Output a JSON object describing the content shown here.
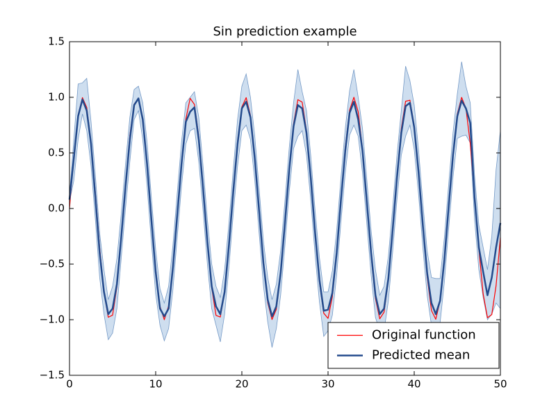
{
  "chart_data": {
    "type": "line",
    "title": "Sin prediction example",
    "x": [
      0,
      0.5,
      1,
      1.5,
      2,
      2.5,
      3,
      3.5,
      4,
      4.5,
      5,
      5.5,
      6,
      6.5,
      7,
      7.5,
      8,
      8.5,
      9,
      9.5,
      10,
      10.5,
      11,
      11.5,
      12,
      12.5,
      13,
      13.5,
      14,
      14.5,
      15,
      15.5,
      16,
      16.5,
      17,
      17.5,
      18,
      18.5,
      19,
      19.5,
      20,
      20.5,
      21,
      21.5,
      22,
      22.5,
      23,
      23.5,
      24,
      24.5,
      25,
      25.5,
      26,
      26.5,
      27,
      27.5,
      28,
      28.5,
      29,
      29.5,
      30,
      30.5,
      31,
      31.5,
      32,
      32.5,
      33,
      33.5,
      34,
      34.5,
      35,
      35.5,
      36,
      36.5,
      37,
      37.5,
      38,
      38.5,
      39,
      39.5,
      40,
      40.5,
      41,
      41.5,
      42,
      42.5,
      43,
      43.5,
      44,
      44.5,
      45,
      45.5,
      46,
      46.5,
      47,
      47.5,
      48,
      48.5,
      49,
      49.5,
      50
    ],
    "band": {
      "color": "#c6d8ec",
      "edge": "#7499c6",
      "upper": [
        0.12,
        0.62,
        1.12,
        1.13,
        1.17,
        0.78,
        0.3,
        -0.22,
        -0.55,
        -0.82,
        -0.7,
        -0.45,
        -0.05,
        0.4,
        0.82,
        1.07,
        1.1,
        0.95,
        0.6,
        0.1,
        -0.37,
        -0.72,
        -0.85,
        -0.7,
        -0.33,
        0.14,
        0.6,
        0.95,
        1.0,
        1.05,
        0.82,
        0.38,
        -0.1,
        -0.5,
        -0.7,
        -0.8,
        -0.55,
        -0.13,
        0.35,
        0.8,
        1.1,
        1.21,
        1.0,
        0.65,
        0.18,
        -0.29,
        -0.62,
        -0.82,
        -0.68,
        -0.38,
        0.07,
        0.55,
        0.95,
        1.25,
        1.05,
        0.88,
        0.47,
        -0.02,
        -0.44,
        -0.75,
        -0.75,
        -0.56,
        -0.2,
        0.28,
        0.72,
        1.06,
        1.25,
        1.0,
        0.72,
        0.26,
        -0.2,
        -0.55,
        -0.78,
        -0.7,
        -0.43,
        0.01,
        0.48,
        0.88,
        1.28,
        1.15,
        0.93,
        0.53,
        0.05,
        -0.38,
        -0.62,
        -0.63,
        -0.63,
        -0.26,
        0.22,
        0.68,
        1.03,
        1.32,
        1.1,
        0.95,
        0.3,
        -0.15,
        -0.35,
        -0.55,
        -0.25,
        0.35,
        0.7
      ],
      "lower": [
        0.06,
        0.25,
        0.62,
        0.85,
        0.7,
        0.38,
        -0.1,
        -0.62,
        -0.95,
        -1.18,
        -1.12,
        -0.9,
        -0.45,
        0.0,
        0.42,
        0.8,
        0.88,
        0.62,
        0.2,
        -0.3,
        -0.77,
        -1.05,
        -1.19,
        -1.08,
        -0.73,
        -0.26,
        0.2,
        0.58,
        0.7,
        0.72,
        0.42,
        -0.02,
        -0.5,
        -0.9,
        -1.05,
        -1.2,
        -0.95,
        -0.53,
        -0.05,
        0.38,
        0.7,
        0.75,
        0.62,
        0.25,
        -0.22,
        -0.69,
        -1.02,
        -1.25,
        -1.08,
        -0.78,
        -0.33,
        0.15,
        0.54,
        0.65,
        0.7,
        0.48,
        0.07,
        -0.42,
        -0.84,
        -1.15,
        -1.1,
        -0.96,
        -0.6,
        -0.12,
        0.32,
        0.66,
        0.75,
        0.65,
        0.32,
        -0.14,
        -0.6,
        -0.98,
        -1.1,
        -1.1,
        -0.83,
        -0.39,
        0.08,
        0.48,
        0.65,
        0.75,
        0.53,
        0.13,
        -0.35,
        -0.78,
        -1.05,
        -1.1,
        -1.03,
        -0.66,
        -0.18,
        0.28,
        0.63,
        0.65,
        0.66,
        0.59,
        -0.1,
        -0.55,
        -0.8,
        -1.0,
        -0.95,
        -0.85,
        -0.9
      ]
    },
    "series": [
      {
        "name": "Original function",
        "color": "#ff0000",
        "width": 1.2,
        "values": [
          0,
          0.479,
          0.841,
          0.997,
          0.909,
          0.598,
          0.141,
          -0.351,
          -0.757,
          -0.978,
          -0.959,
          -0.706,
          -0.279,
          0.215,
          0.657,
          0.938,
          0.989,
          0.798,
          0.412,
          -0.075,
          -0.544,
          -0.88,
          -1.0,
          -0.875,
          -0.537,
          -0.066,
          0.42,
          0.804,
          0.991,
          0.935,
          0.65,
          0.206,
          -0.288,
          -0.712,
          -0.961,
          -0.976,
          -0.751,
          -0.343,
          0.15,
          0.605,
          0.913,
          0.997,
          0.837,
          0.471,
          -0.009,
          -0.487,
          -0.846,
          -0.998,
          -0.906,
          -0.592,
          -0.132,
          0.359,
          0.763,
          0.979,
          0.956,
          0.699,
          0.271,
          -0.223,
          -0.664,
          -0.941,
          -0.988,
          -0.793,
          -0.404,
          0.084,
          0.551,
          0.884,
          1.0,
          0.871,
          0.529,
          0.057,
          -0.428,
          -0.809,
          -0.992,
          -0.932,
          -0.644,
          -0.198,
          0.296,
          0.718,
          0.964,
          0.974,
          0.745,
          0.335,
          -0.159,
          -0.612,
          -0.917,
          -0.996,
          -0.832,
          -0.464,
          0.018,
          0.495,
          0.851,
          0.999,
          0.902,
          0.584,
          0.124,
          -0.367,
          -0.768,
          -0.982,
          -0.954,
          -0.693,
          -0.262
        ]
      },
      {
        "name": "Predicted mean",
        "color": "#234a8c",
        "width": 2.5,
        "values": [
          0.08,
          0.45,
          0.83,
          0.98,
          0.88,
          0.58,
          0.1,
          -0.4,
          -0.75,
          -0.95,
          -0.9,
          -0.68,
          -0.26,
          0.2,
          0.62,
          0.93,
          0.99,
          0.8,
          0.4,
          -0.1,
          -0.57,
          -0.9,
          -0.97,
          -0.9,
          -0.53,
          -0.06,
          0.4,
          0.78,
          0.87,
          0.91,
          0.62,
          0.18,
          -0.3,
          -0.7,
          -0.88,
          -0.95,
          -0.75,
          -0.33,
          0.15,
          0.58,
          0.9,
          0.96,
          0.82,
          0.45,
          -0.02,
          -0.49,
          -0.82,
          -0.97,
          -0.88,
          -0.58,
          -0.13,
          0.35,
          0.74,
          0.93,
          0.9,
          0.68,
          0.27,
          -0.22,
          -0.64,
          -0.92,
          -0.91,
          -0.76,
          -0.4,
          0.08,
          0.52,
          0.86,
          0.96,
          0.8,
          0.52,
          0.06,
          -0.4,
          -0.78,
          -0.95,
          -0.9,
          -0.63,
          -0.19,
          0.28,
          0.68,
          0.92,
          0.95,
          0.73,
          0.33,
          -0.15,
          -0.58,
          -0.85,
          -0.95,
          -0.83,
          -0.46,
          0.02,
          0.48,
          0.83,
          0.97,
          0.9,
          0.77,
          0.1,
          -0.35,
          -0.57,
          -0.78,
          -0.62,
          -0.35,
          -0.13
        ]
      }
    ],
    "xlim": [
      0,
      50
    ],
    "ylim": [
      -1.5,
      1.5
    ],
    "xticks": [
      0,
      10,
      20,
      30,
      40,
      50
    ],
    "yticks": [
      {
        "value": -1.5,
        "label": "−1.5"
      },
      {
        "value": -1,
        "label": "−1.0"
      },
      {
        "value": -0.5,
        "label": "−0.5"
      },
      {
        "value": 0,
        "label": "0.0"
      },
      0.5,
      {
        "value": 1,
        "label": "1.0"
      },
      1.5
    ],
    "legend": "lower right"
  }
}
